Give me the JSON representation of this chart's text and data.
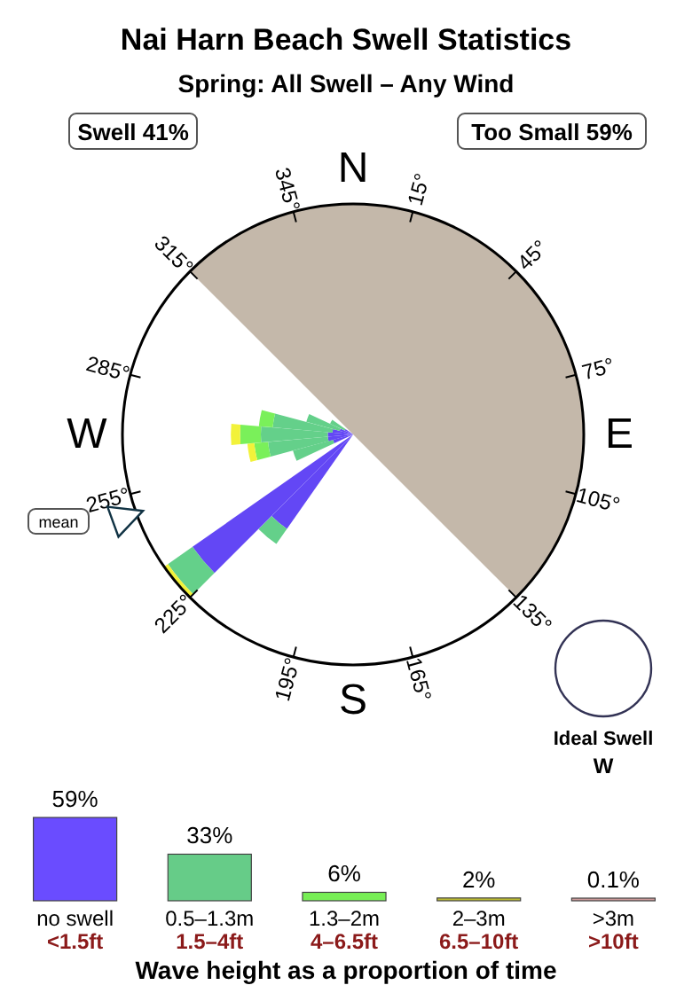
{
  "chart_data": [
    {
      "type": "other",
      "title": "Nai Harn Beach Swell Statistics",
      "subtitle": "Spring: All Swell – Any Wind",
      "annotations": [
        "Swell 41%",
        "Too Small 59%",
        "N",
        "15°",
        "45°",
        "75°",
        "E",
        "105°",
        "135°",
        "165°",
        "S",
        "195°",
        "225°",
        "255°",
        "W",
        "285°",
        "315°",
        "345°",
        "mean",
        "Ideal Swell",
        "W"
      ]
    },
    {
      "type": "bar",
      "categories": [
        "no swell",
        "0.5–1.3m",
        "1.3–2m",
        "2–3m",
        ">3m"
      ],
      "values": [
        59,
        33,
        6,
        2,
        0.1
      ],
      "value_labels": [
        "59%",
        "33%",
        "6%",
        "2%",
        "0.1%"
      ],
      "colors": [
        "#6a4cff",
        "#66cc88",
        "#77ee55",
        "#bbbb33",
        "#cc9999"
      ],
      "tick_labels": "x",
      "xlabel": "Wave height as a proportion of time",
      "annotations": [
        "<1.5ft",
        "1.5–4ft",
        "4–6.5ft",
        "6.5–10ft",
        ">10ft"
      ]
    }
  ]
}
